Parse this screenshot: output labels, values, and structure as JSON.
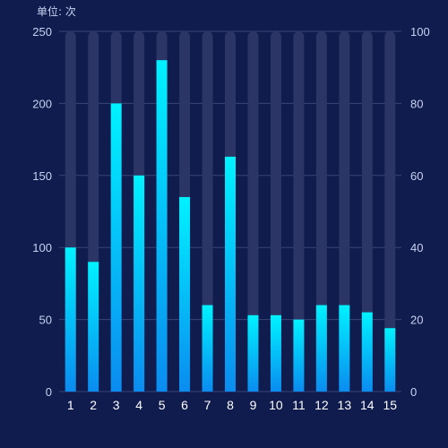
{
  "unit_label": "单位: 次",
  "colors": {
    "background": "#0f1c4d",
    "bar_top": "#00f2ff",
    "bar_bottom": "#0a8cf0",
    "bar_track": "#2b3566",
    "grid": "#3a4576",
    "axis_text": "#c9d2f0",
    "category_text": "#ffffff"
  },
  "chart_data": {
    "type": "bar",
    "categories": [
      "1",
      "2",
      "3",
      "4",
      "5",
      "6",
      "7",
      "8",
      "9",
      "10",
      "11",
      "12",
      "13",
      "14",
      "15"
    ],
    "values": [
      100,
      90,
      200,
      150,
      230,
      135,
      60,
      163,
      53,
      53,
      50,
      60,
      60,
      55,
      44
    ],
    "background_track_max": 250,
    "y_left": {
      "min": 0,
      "max": 250,
      "ticks": [
        0,
        50,
        100,
        150,
        200,
        250
      ]
    },
    "y_right": {
      "min": 0,
      "max": 100,
      "ticks": [
        0,
        20,
        40,
        60,
        80,
        100
      ]
    },
    "grid": true,
    "legend": "none",
    "title": "",
    "xlabel": "",
    "ylabel": ""
  }
}
